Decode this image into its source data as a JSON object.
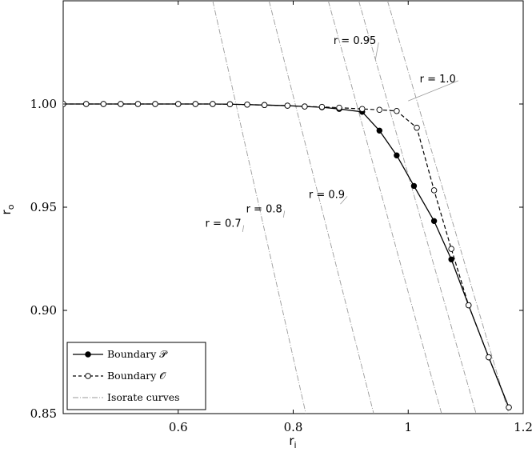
{
  "chart_data": {
    "type": "line",
    "xlabel": "r_i",
    "ylabel": "r_o",
    "xlim": [
      0.4,
      1.2
    ],
    "ylim": [
      0.85,
      1.05
    ],
    "xticks": [
      {
        "value": 0.6,
        "label": "0.6"
      },
      {
        "value": 0.8,
        "label": "0.8"
      },
      {
        "value": 1.0,
        "label": "1"
      },
      {
        "value": 1.2,
        "label": "1.2"
      }
    ],
    "yticks": [
      {
        "value": 0.85,
        "label": "0.85"
      },
      {
        "value": 0.9,
        "label": "0.90"
      },
      {
        "value": 0.95,
        "label": "0.95"
      },
      {
        "value": 1.0,
        "label": "1.00"
      }
    ],
    "grid": false,
    "legend_position": "bottom-left",
    "series": [
      {
        "name": "Boundary 𝒫",
        "style": "solid-filled-circle",
        "color": "#000000",
        "x": [
          0.4,
          0.44,
          0.47,
          0.5,
          0.53,
          0.56,
          0.6,
          0.63,
          0.66,
          0.69,
          0.72,
          0.75,
          0.79,
          0.82,
          0.85,
          0.88,
          0.92,
          0.95,
          0.98,
          1.01,
          1.045,
          1.075,
          1.105,
          1.14,
          1.175
        ],
        "y": [
          1.0,
          1.0,
          1.0,
          1.0,
          1.0,
          1.0,
          1.0,
          1.0,
          1.0,
          0.9999,
          0.9997,
          0.9995,
          0.9992,
          0.9988,
          0.9984,
          0.9976,
          0.9962,
          0.9871,
          0.9751,
          0.9603,
          0.9433,
          0.9247,
          0.9025,
          0.8773,
          0.853
        ]
      },
      {
        "name": "Boundary 𝒪",
        "style": "dashed-open-circle",
        "color": "#000000",
        "x": [
          0.4,
          0.44,
          0.47,
          0.5,
          0.53,
          0.56,
          0.6,
          0.63,
          0.66,
          0.69,
          0.72,
          0.75,
          0.79,
          0.82,
          0.85,
          0.88,
          0.92,
          0.95,
          0.98,
          1.015,
          1.045,
          1.075,
          1.105,
          1.14,
          1.175
        ],
        "y": [
          1.0,
          1.0,
          1.0,
          1.0,
          1.0,
          1.0,
          1.0,
          1.0,
          1.0,
          0.9999,
          0.9997,
          0.9995,
          0.9992,
          0.9988,
          0.9986,
          0.9982,
          0.9976,
          0.9972,
          0.9966,
          0.9885,
          0.9582,
          0.9298,
          0.9025,
          0.8773,
          0.853
        ]
      },
      {
        "name": "Isorate curves",
        "style": "dash-dot",
        "color": "#9a9a9a",
        "lines": [
          {
            "label": "r = 0.7",
            "x": [
              0.66,
              0.822
            ],
            "y": [
              1.05,
              0.85
            ]
          },
          {
            "label": "r = 0.8",
            "x": [
              0.758,
              0.94
            ],
            "y": [
              1.05,
              0.85
            ]
          },
          {
            "label": "r = 0.9",
            "x": [
              0.861,
              1.058
            ],
            "y": [
              1.05,
              0.85
            ]
          },
          {
            "label": "r = 0.95",
            "x": [
              0.914,
              1.118
            ],
            "y": [
              1.05,
              0.85
            ]
          },
          {
            "label": "r = 1.0",
            "x": [
              0.964,
              1.175
            ],
            "y": [
              1.05,
              0.85
            ]
          }
        ]
      }
    ],
    "annotations": [
      {
        "text": "r = 0.7",
        "x": 0.647,
        "y": 0.9405,
        "target": [
          0.712,
          0.938
        ]
      },
      {
        "text": "r = 0.8",
        "x": 0.718,
        "y": 0.9475,
        "target": [
          0.783,
          0.945
        ]
      },
      {
        "text": "r = 0.9",
        "x": 0.827,
        "y": 0.9545,
        "target": [
          0.882,
          0.9515
        ]
      },
      {
        "text": "r = 0.95",
        "x": 0.87,
        "y": 1.029,
        "target": [
          0.943,
          1.0215
        ]
      },
      {
        "text": "r = 1.0",
        "x": 1.02,
        "y": 1.0105,
        "target": [
          1.0,
          1.0015
        ]
      }
    ]
  }
}
